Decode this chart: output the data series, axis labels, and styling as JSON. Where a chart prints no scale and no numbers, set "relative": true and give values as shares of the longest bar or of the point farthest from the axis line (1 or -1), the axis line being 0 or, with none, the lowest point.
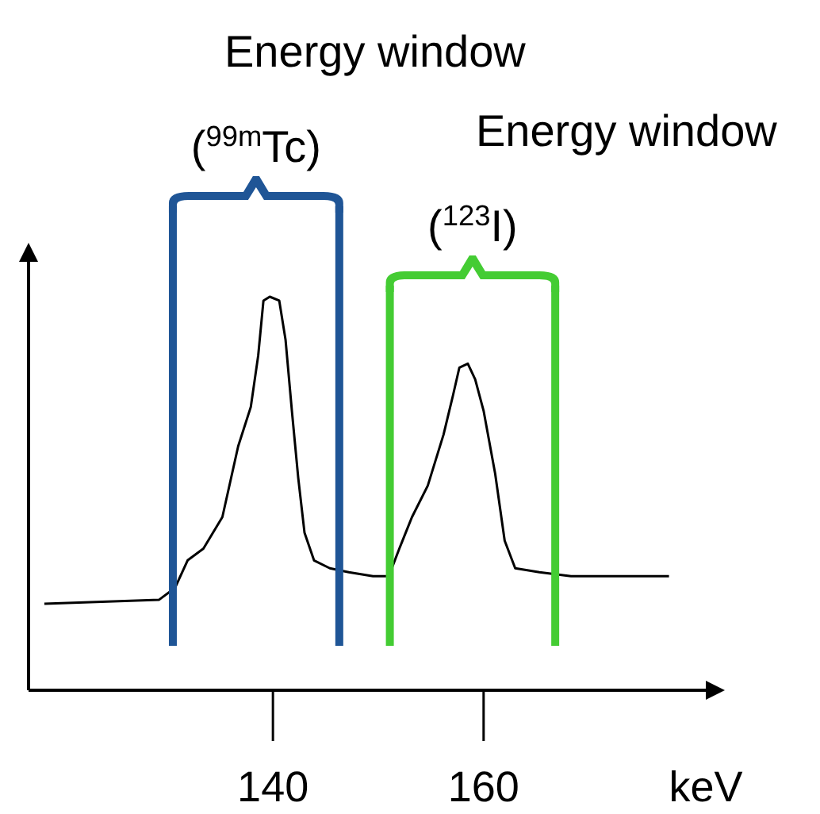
{
  "chart_data": {
    "type": "line",
    "relative": true,
    "xlabel": "keV",
    "xlim": [
      116.8,
      182.6
    ],
    "xticks": [
      140,
      160
    ],
    "tick_labels": "x",
    "marker": "none",
    "line_style": "solid",
    "x": [
      118.3,
      129.2,
      130.7,
      131.9,
      133.4,
      135.2,
      136.7,
      137.9,
      138.6,
      139.1,
      139.7,
      140.6,
      141.2,
      141.8,
      142.4,
      143.0,
      143.9,
      145.4,
      147.2,
      149.5,
      151.0,
      152.0,
      153.2,
      154.7,
      156.2,
      157.1,
      157.7,
      158.5,
      159.2,
      160.0,
      161.1,
      162.0,
      163.0,
      165.3,
      168.3,
      171.3,
      174.3,
      177.6
    ],
    "series": [
      {
        "color": "#000000",
        "values": [
          0.22,
          0.23,
          0.26,
          0.33,
          0.36,
          0.44,
          0.62,
          0.72,
          0.85,
          0.99,
          1,
          0.99,
          0.89,
          0.71,
          0.54,
          0.4,
          0.33,
          0.31,
          0.3,
          0.29,
          0.29,
          0.36,
          0.44,
          0.52,
          0.65,
          0.75,
          0.82,
          0.83,
          0.79,
          0.71,
          0.55,
          0.38,
          0.31,
          0.3,
          0.29,
          0.29,
          0.29,
          0.29
        ]
      }
    ],
    "ref_lines": [
      {
        "axis": "x",
        "value": 130.5,
        "label": "Energy window ($^{99m}$Tc)",
        "color": "#1f5596"
      },
      {
        "axis": "x",
        "value": 146.3,
        "color": "#1f5596"
      },
      {
        "axis": "x",
        "value": 151.1,
        "label": "Energy window ($^{123}$I)",
        "color": "#44cc33"
      },
      {
        "axis": "x",
        "value": 166.8,
        "color": "#44cc33"
      }
    ]
  }
}
